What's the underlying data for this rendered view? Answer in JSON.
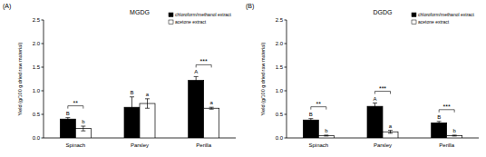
{
  "chart_data": [
    {
      "type": "bar",
      "label": "(A)",
      "title": "MGDG",
      "y_label": "Yield (g/100 g dried raw material)",
      "categories": [
        "Spinach",
        "Parsley",
        "Perilla"
      ],
      "series": [
        {
          "name": "chloroform/methanol extract",
          "color": "#000000",
          "values": [
            0.4,
            0.65,
            1.22
          ],
          "errors": [
            0.03,
            0.22,
            0.08
          ],
          "letters": [
            "B",
            "B",
            "A"
          ]
        },
        {
          "name": "acetone extract",
          "color": "#ffffff",
          "values": [
            0.2,
            0.73,
            0.63
          ],
          "errors": [
            0.05,
            0.1,
            0.02
          ],
          "letters": [
            "b",
            "a",
            "a"
          ]
        }
      ],
      "significance": [
        "**",
        null,
        "***"
      ],
      "ylim": [
        0,
        2.5
      ],
      "yticks": [
        {
          "value": 0,
          "label": "0.0"
        },
        {
          "value": 0.5,
          "label": "0.5"
        },
        {
          "value": 1,
          "label": "1.0"
        },
        {
          "value": 1.5,
          "label": "1.5"
        },
        {
          "value": 2,
          "label": "2.0"
        },
        {
          "value": 2.5,
          "label": "2.5"
        }
      ],
      "legend": "upper right",
      "grid": false
    },
    {
      "type": "bar",
      "label": "(B)",
      "title": "DGDG",
      "y_label": "Yield (g/100 g dried raw material)",
      "categories": [
        "Spinach",
        "Parsley",
        "Perilla"
      ],
      "series": [
        {
          "name": "chloroform/methanol extract",
          "color": "#000000",
          "values": [
            0.38,
            0.67,
            0.32
          ],
          "errors": [
            0.03,
            0.07,
            0.03
          ],
          "letters": [
            "B",
            "A",
            "B"
          ]
        },
        {
          "name": "acetone extract",
          "color": "#ffffff",
          "values": [
            0.05,
            0.13,
            0.05
          ],
          "errors": [
            0.01,
            0.03,
            0.01
          ],
          "letters": [
            "b",
            "a",
            "b"
          ]
        }
      ],
      "significance": [
        "**",
        "***",
        "***"
      ],
      "ylim": [
        0,
        2.5
      ],
      "yticks": [
        {
          "value": 0,
          "label": "0.0"
        },
        {
          "value": 0.5,
          "label": "0.5"
        },
        {
          "value": 1,
          "label": "1.0"
        },
        {
          "value": 1.5,
          "label": "1.5"
        },
        {
          "value": 2,
          "label": "2.0"
        },
        {
          "value": 2.5,
          "label": "2.5"
        }
      ],
      "legend": "upper right",
      "grid": false
    }
  ]
}
